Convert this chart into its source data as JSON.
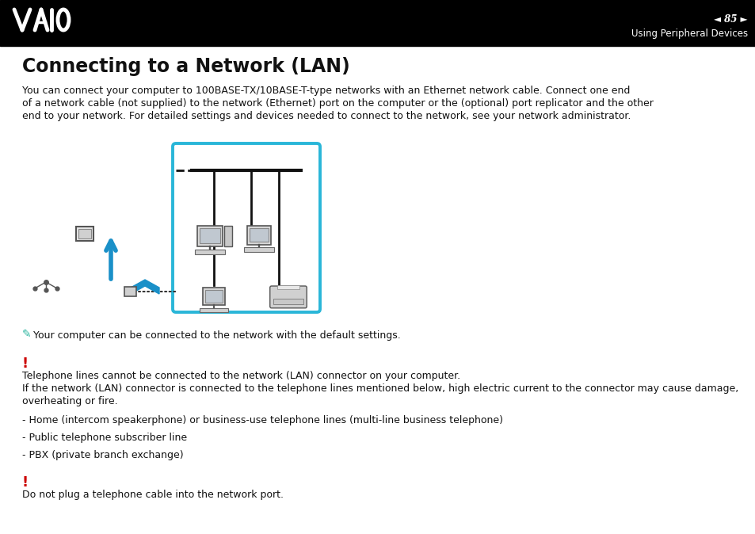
{
  "bg_color": "#ffffff",
  "header_bg": "#000000",
  "header_text_color": "#ffffff",
  "header_page_num": "85",
  "header_subtitle": "Using Peripheral Devices",
  "title": "Connecting to a Network (LAN)",
  "title_fontsize": 17,
  "body_text": "You can connect your computer to 100BASE-TX/10BASE-T-type networks with an Ethernet network cable. Connect one end\nof a network cable (not supplied) to the network (Ethernet) port on the computer or the (optional) port replicator and the other\nend to your network. For detailed settings and devices needed to connect to the network, see your network administrator.",
  "body_fontsize": 9,
  "note_icon_color": "#2cb5a0",
  "note_text": "Your computer can be connected to the network with the default settings.",
  "warning_color": "#cc0000",
  "warning1_line1": "Telephone lines cannot be connected to the network (LAN) connector on your computer.",
  "warning1_line2": "If the network (LAN) connector is connected to the telephone lines mentioned below, high electric current to the connector may cause damage,",
  "warning1_line3": "overheating or fire.",
  "bullet1": "- Home (intercom speakerphone) or business-use telephone lines (multi-line business telephone)",
  "bullet2": "- Public telephone subscriber line",
  "bullet3": "- PBX (private branch exchange)",
  "warning2_text": "Do not plug a telephone cable into the network port.",
  "diagram_box_color": "#29b6d8",
  "text_color": "#111111"
}
